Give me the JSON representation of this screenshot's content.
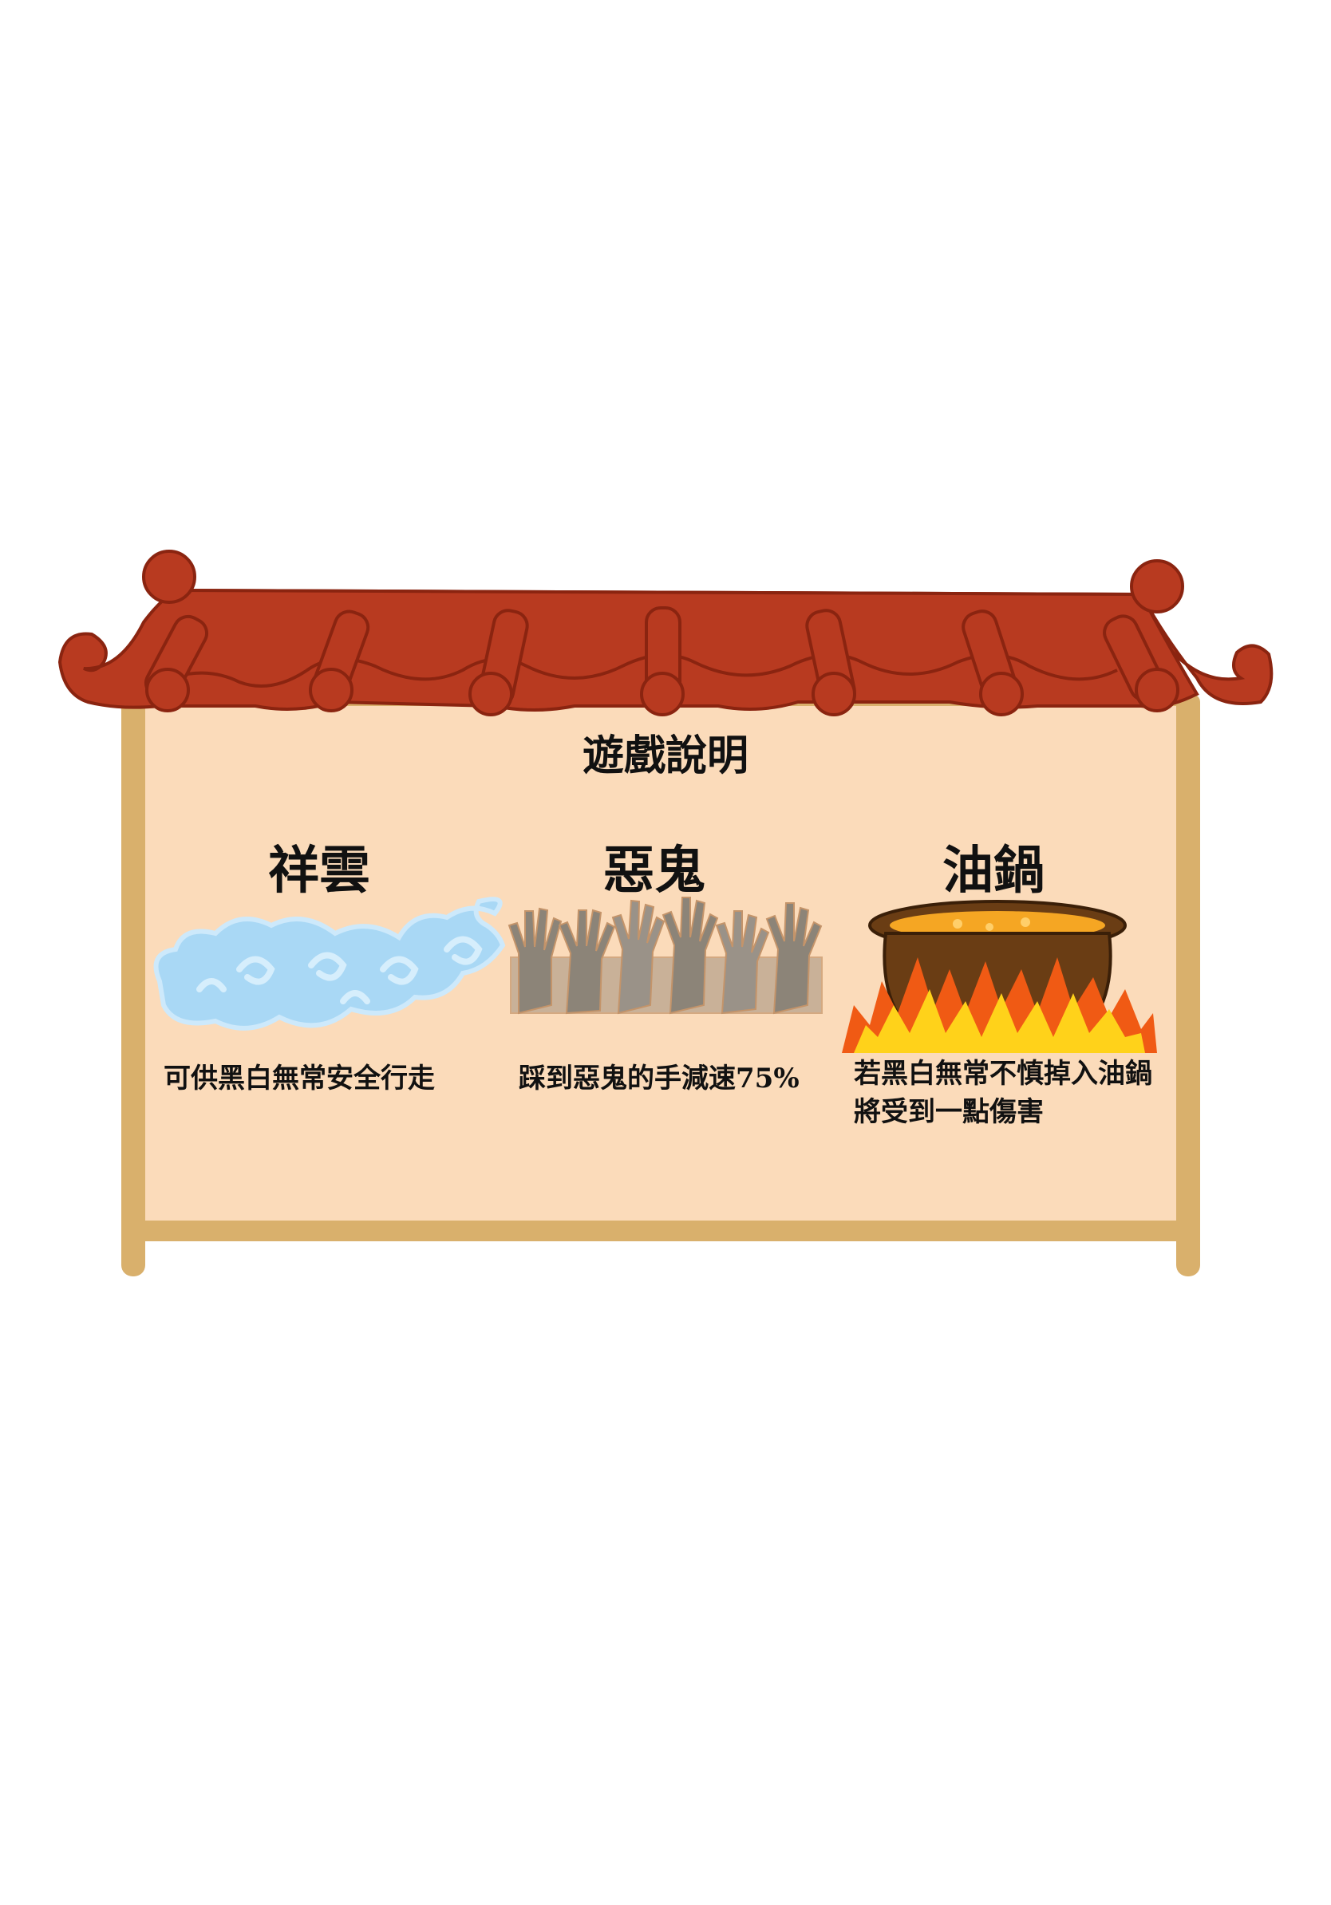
{
  "title": "遊戲說明",
  "items": [
    {
      "name": "祥雲",
      "icon": "cloud-icon",
      "description": "可供黑白無常安全行走"
    },
    {
      "name": "惡鬼",
      "icon": "ghost-hands-icon",
      "description": "踩到惡鬼的手減速75%"
    },
    {
      "name": "油鍋",
      "icon": "oil-pot-fire-icon",
      "description": "若黑白無常不慎掉入油鍋",
      "description_line2": "將受到一點傷害"
    }
  ],
  "colors": {
    "roof": "#b83a20",
    "roof_outline": "#8a2410",
    "panel": "#fbdbba",
    "frame": "#d9b06c",
    "cloud": "#a9d8f5",
    "hands": "#8c8478",
    "pot": "#6a3d14",
    "oil": "#f5a623",
    "fire_outer": "#f05a14",
    "fire_inner": "#ffd21a"
  }
}
